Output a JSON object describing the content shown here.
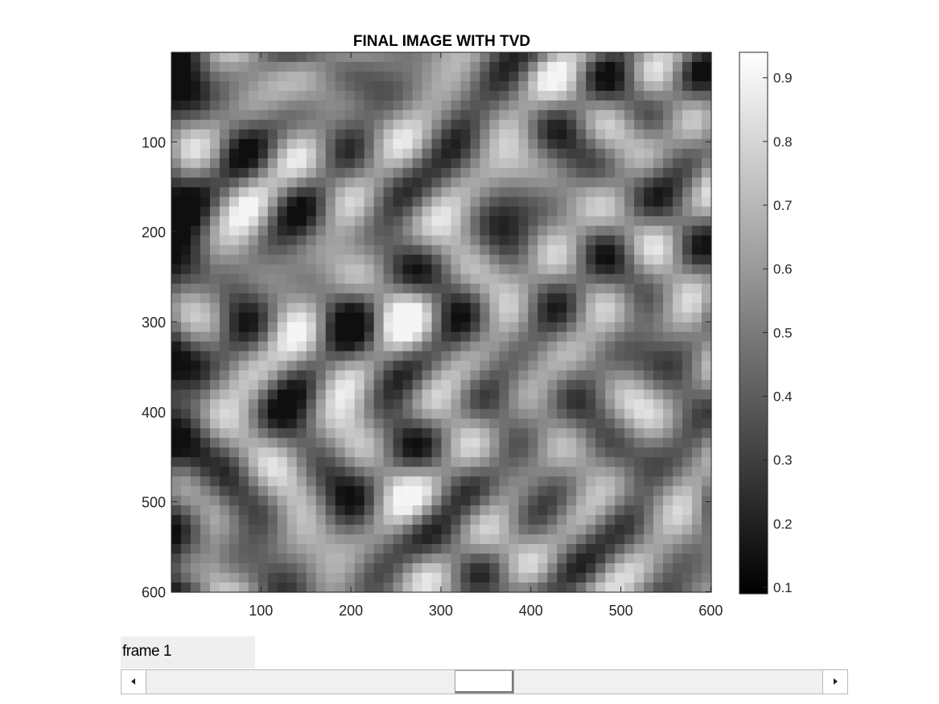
{
  "figure": {
    "title": "FINAL IMAGE WITH TVD"
  },
  "chart_data": {
    "type": "heatmap",
    "title": "FINAL IMAGE WITH TVD",
    "colormap": "gray",
    "x_range": [
      1,
      600
    ],
    "y_range": [
      1,
      600
    ],
    "y_reversed": true,
    "x_ticks": [
      100,
      200,
      300,
      400,
      500,
      600
    ],
    "y_ticks": [
      100,
      200,
      300,
      400,
      500,
      600
    ],
    "colorbar": {
      "range": [
        0.09,
        0.94
      ],
      "ticks": [
        0.1,
        0.2,
        0.3,
        0.4,
        0.5,
        0.6,
        0.7,
        0.8,
        0.9
      ]
    },
    "grid": false,
    "xlabel": "",
    "ylabel": ""
  },
  "controls": {
    "frame_label": "frame 1",
    "slider": {
      "value_fraction": 0.5
    }
  },
  "icons": {
    "scroll_left": "triangle-left-icon",
    "scroll_right": "triangle-right-icon"
  }
}
